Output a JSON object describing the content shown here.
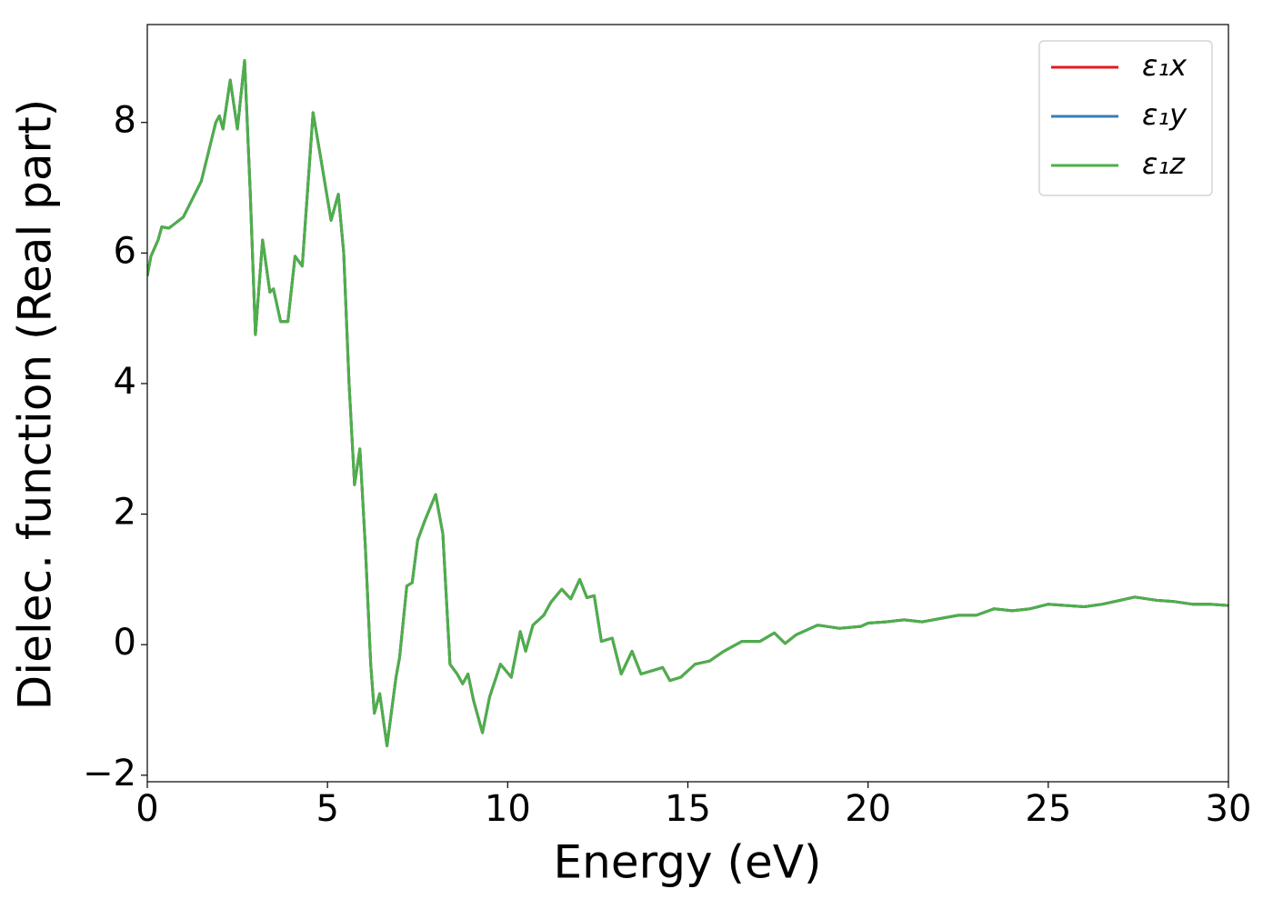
{
  "chart_data": {
    "type": "line",
    "xlabel": "Energy (eV)",
    "ylabel": "Dielec. function (Real part)",
    "xlim": [
      0,
      30
    ],
    "ylim": [
      -2.1,
      9.5
    ],
    "xticks": [
      0,
      5,
      10,
      15,
      20,
      25,
      30
    ],
    "yticks": [
      {
        "value": -2,
        "label": "−2"
      },
      0,
      2,
      4,
      6,
      8
    ],
    "legend": "upper right",
    "x": [
      0,
      0.1,
      0.3,
      0.4,
      0.6,
      1.0,
      1.5,
      1.9,
      2.0,
      2.1,
      2.3,
      2.5,
      2.7,
      2.85,
      3.0,
      3.2,
      3.4,
      3.5,
      3.7,
      3.9,
      4.1,
      4.3,
      4.6,
      4.8,
      5.1,
      5.3,
      5.45,
      5.6,
      5.75,
      5.9,
      6.05,
      6.2,
      6.3,
      6.45,
      6.65,
      6.9,
      7.0,
      7.2,
      7.35,
      7.5,
      7.7,
      8.0,
      8.2,
      8.4,
      8.6,
      8.75,
      8.9,
      9.05,
      9.3,
      9.5,
      9.8,
      10.1,
      10.35,
      10.5,
      10.7,
      11.0,
      11.2,
      11.5,
      11.75,
      12.0,
      12.2,
      12.4,
      12.6,
      12.9,
      13.15,
      13.45,
      13.7,
      14.0,
      14.3,
      14.5,
      14.8,
      15.2,
      15.6,
      16.0,
      16.5,
      17.0,
      17.4,
      17.7,
      18.0,
      18.6,
      19.2,
      19.8,
      20.0,
      20.5,
      21.0,
      21.5,
      22.0,
      22.5,
      23.0,
      23.5,
      24.0,
      24.5,
      25.0,
      25.5,
      26.0,
      26.5,
      27.0,
      27.4,
      28.0,
      28.5,
      29.0,
      29.5,
      30.0
    ],
    "series": [
      {
        "name": "ε₁x",
        "color": "#e41a1c",
        "values": [
          5.65,
          5.95,
          6.2,
          6.4,
          6.38,
          6.55,
          7.1,
          8.0,
          8.1,
          7.9,
          8.65,
          7.9,
          8.95,
          7.0,
          4.75,
          6.2,
          5.4,
          5.45,
          4.95,
          4.95,
          5.95,
          5.8,
          8.15,
          7.5,
          6.5,
          6.9,
          6.0,
          4.0,
          2.45,
          3.0,
          1.5,
          -0.3,
          -1.05,
          -0.75,
          -1.55,
          -0.5,
          -0.2,
          0.9,
          0.95,
          1.6,
          1.9,
          2.3,
          1.7,
          -0.3,
          -0.45,
          -0.6,
          -0.45,
          -0.85,
          -1.35,
          -0.8,
          -0.3,
          -0.5,
          0.2,
          -0.1,
          0.3,
          0.45,
          0.65,
          0.85,
          0.7,
          1.0,
          0.72,
          0.75,
          0.05,
          0.1,
          -0.45,
          -0.1,
          -0.45,
          -0.4,
          -0.35,
          -0.55,
          -0.5,
          -0.3,
          -0.25,
          -0.1,
          0.05,
          0.05,
          0.18,
          0.02,
          0.15,
          0.3,
          0.25,
          0.28,
          0.33,
          0.35,
          0.38,
          0.35,
          0.4,
          0.45,
          0.45,
          0.55,
          0.52,
          0.55,
          0.62,
          0.6,
          0.58,
          0.62,
          0.68,
          0.73,
          0.68,
          0.66,
          0.62,
          0.62,
          0.6
        ]
      },
      {
        "name": "ε₁y",
        "color": "#377eb8",
        "values": [
          5.65,
          5.95,
          6.2,
          6.4,
          6.38,
          6.55,
          7.1,
          8.0,
          8.1,
          7.9,
          8.65,
          7.9,
          8.95,
          7.0,
          4.75,
          6.2,
          5.4,
          5.45,
          4.95,
          4.95,
          5.95,
          5.8,
          8.15,
          7.5,
          6.5,
          6.9,
          6.0,
          4.0,
          2.45,
          3.0,
          1.5,
          -0.3,
          -1.05,
          -0.75,
          -1.55,
          -0.5,
          -0.2,
          0.9,
          0.95,
          1.6,
          1.9,
          2.3,
          1.7,
          -0.3,
          -0.45,
          -0.6,
          -0.45,
          -0.85,
          -1.35,
          -0.8,
          -0.3,
          -0.5,
          0.2,
          -0.1,
          0.3,
          0.45,
          0.65,
          0.85,
          0.7,
          1.0,
          0.72,
          0.75,
          0.05,
          0.1,
          -0.45,
          -0.1,
          -0.45,
          -0.4,
          -0.35,
          -0.55,
          -0.5,
          -0.3,
          -0.25,
          -0.1,
          0.05,
          0.05,
          0.18,
          0.02,
          0.15,
          0.3,
          0.25,
          0.28,
          0.33,
          0.35,
          0.38,
          0.35,
          0.4,
          0.45,
          0.45,
          0.55,
          0.52,
          0.55,
          0.62,
          0.6,
          0.58,
          0.62,
          0.68,
          0.73,
          0.68,
          0.66,
          0.62,
          0.62,
          0.6
        ]
      },
      {
        "name": "ε₁z",
        "color": "#4daf4a",
        "values": [
          5.65,
          5.95,
          6.2,
          6.4,
          6.38,
          6.55,
          7.1,
          8.0,
          8.1,
          7.9,
          8.65,
          7.9,
          8.95,
          7.0,
          4.75,
          6.2,
          5.4,
          5.45,
          4.95,
          4.95,
          5.95,
          5.8,
          8.15,
          7.5,
          6.5,
          6.9,
          6.0,
          4.0,
          2.45,
          3.0,
          1.5,
          -0.3,
          -1.05,
          -0.75,
          -1.55,
          -0.5,
          -0.2,
          0.9,
          0.95,
          1.6,
          1.9,
          2.3,
          1.7,
          -0.3,
          -0.45,
          -0.6,
          -0.45,
          -0.85,
          -1.35,
          -0.8,
          -0.3,
          -0.5,
          0.2,
          -0.1,
          0.3,
          0.45,
          0.65,
          0.85,
          0.7,
          1.0,
          0.72,
          0.75,
          0.05,
          0.1,
          -0.45,
          -0.1,
          -0.45,
          -0.4,
          -0.35,
          -0.55,
          -0.5,
          -0.3,
          -0.25,
          -0.1,
          0.05,
          0.05,
          0.18,
          0.02,
          0.15,
          0.3,
          0.25,
          0.28,
          0.33,
          0.35,
          0.38,
          0.35,
          0.4,
          0.45,
          0.45,
          0.55,
          0.52,
          0.55,
          0.62,
          0.6,
          0.58,
          0.62,
          0.68,
          0.73,
          0.68,
          0.66,
          0.62,
          0.62,
          0.6
        ]
      }
    ]
  }
}
